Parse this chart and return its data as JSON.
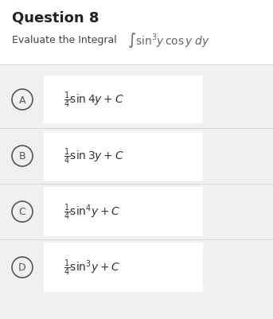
{
  "title": "Question 8",
  "question_text": "Evaluate the Integral",
  "integral_expr": "$\\int \\sin^3\\!y\\, \\cos y\\; dy$",
  "options": [
    {
      "label": "A",
      "expr": "$\\dfrac{1}{4}\\sin 4y + C$"
    },
    {
      "label": "B",
      "expr": "$\\dfrac{1}{4}\\sin 3y + C$"
    },
    {
      "label": "C",
      "expr": "$\\dfrac{1}{4}\\sin^4\\!y + C$"
    },
    {
      "label": "D",
      "expr": "$\\dfrac{1}{4}\\sin^3\\!y + C$"
    }
  ],
  "bg_color": "#f0f0f0",
  "white": "#ffffff",
  "answer_bg": "#e8e8e8",
  "text_color": "#333333",
  "circle_color": "#555555"
}
